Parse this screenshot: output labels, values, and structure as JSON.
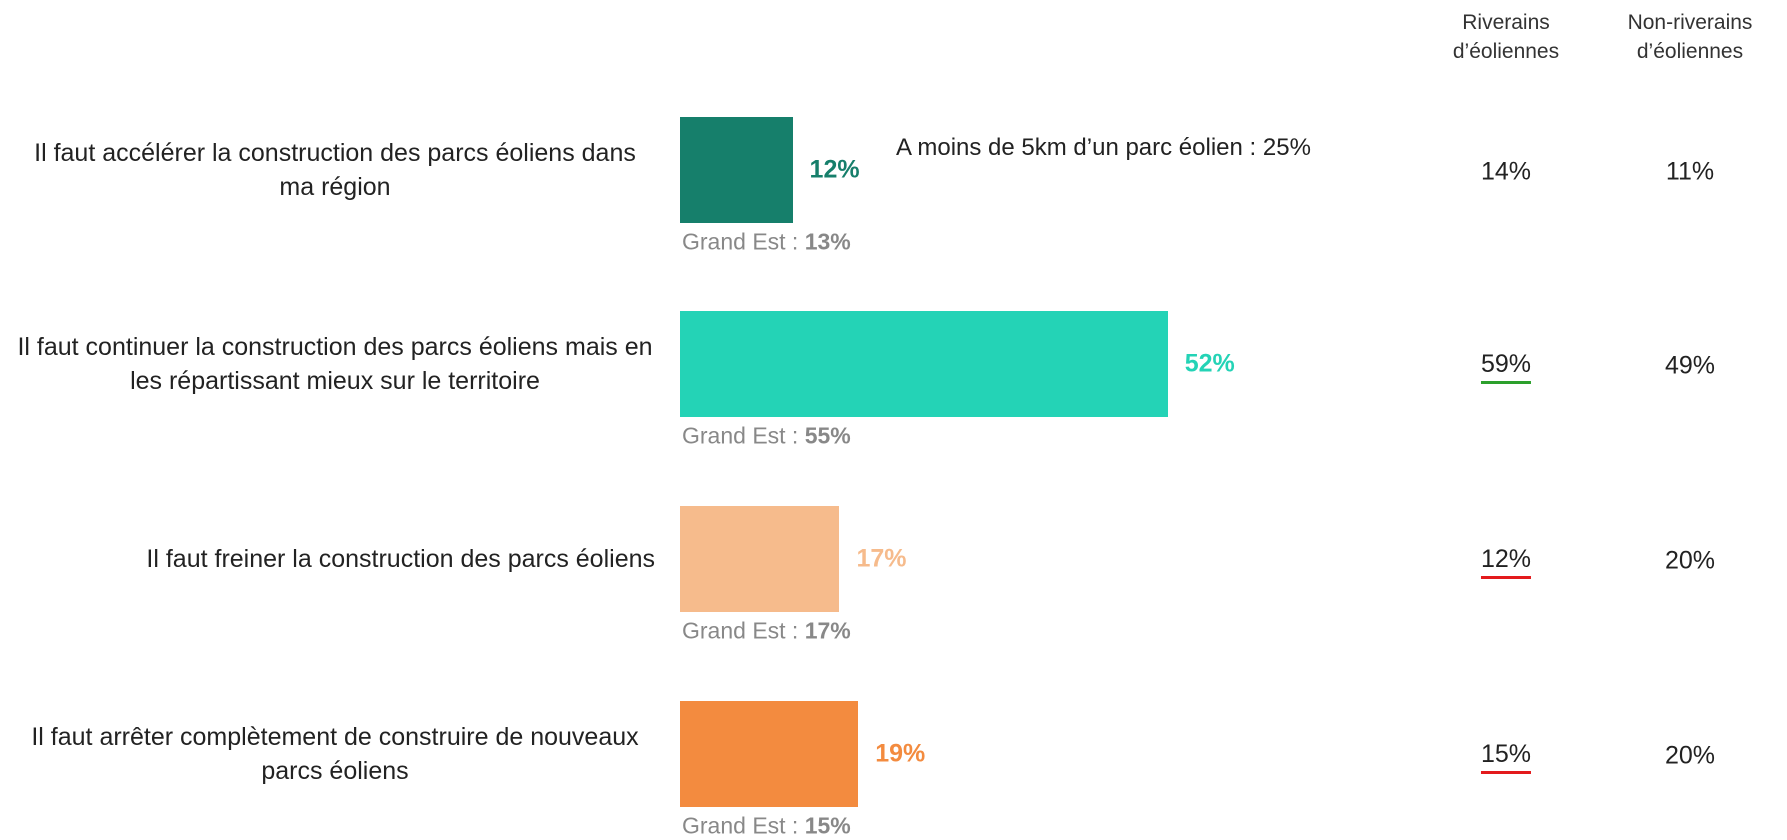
{
  "chart_data": {
    "type": "bar",
    "orientation": "horizontal",
    "categories": [
      "Il faut accélérer la construction des parcs éoliens dans ma région",
      "Il faut continuer la construction des parcs éoliens mais en les répartissant mieux sur le territoire",
      "Il faut freiner la construction des parcs éoliens",
      "Il faut arrêter complètement de construire de nouveaux parcs éoliens"
    ],
    "values": [
      12,
      52,
      17,
      19
    ],
    "value_labels": [
      "12%",
      "52%",
      "17%",
      "19%"
    ],
    "colors": [
      "#167f6b",
      "#24d3b6",
      "#f6bb8c",
      "#f38b3f"
    ],
    "comparison_label": "Grand Est :",
    "comparison_values": [
      13,
      55,
      17,
      15
    ],
    "comparison_value_labels": [
      "13%",
      "55%",
      "17%",
      "15%"
    ],
    "annotation": "A moins de 5km d’un parc éolien : 25%",
    "columns": [
      {
        "name": "Riverains d’éoliennes",
        "values": [
          14,
          59,
          12,
          15
        ],
        "value_labels": [
          "14%",
          "59%",
          "12%",
          "15%"
        ],
        "underline": [
          null,
          "#2ca02c",
          "#e31a1c",
          "#e31a1c"
        ]
      },
      {
        "name": "Non-riverains d’éoliennes",
        "values": [
          11,
          49,
          20,
          20
        ],
        "value_labels": [
          "11%",
          "49%",
          "20%",
          "20%"
        ],
        "underline": [
          null,
          null,
          null,
          null
        ]
      }
    ]
  }
}
